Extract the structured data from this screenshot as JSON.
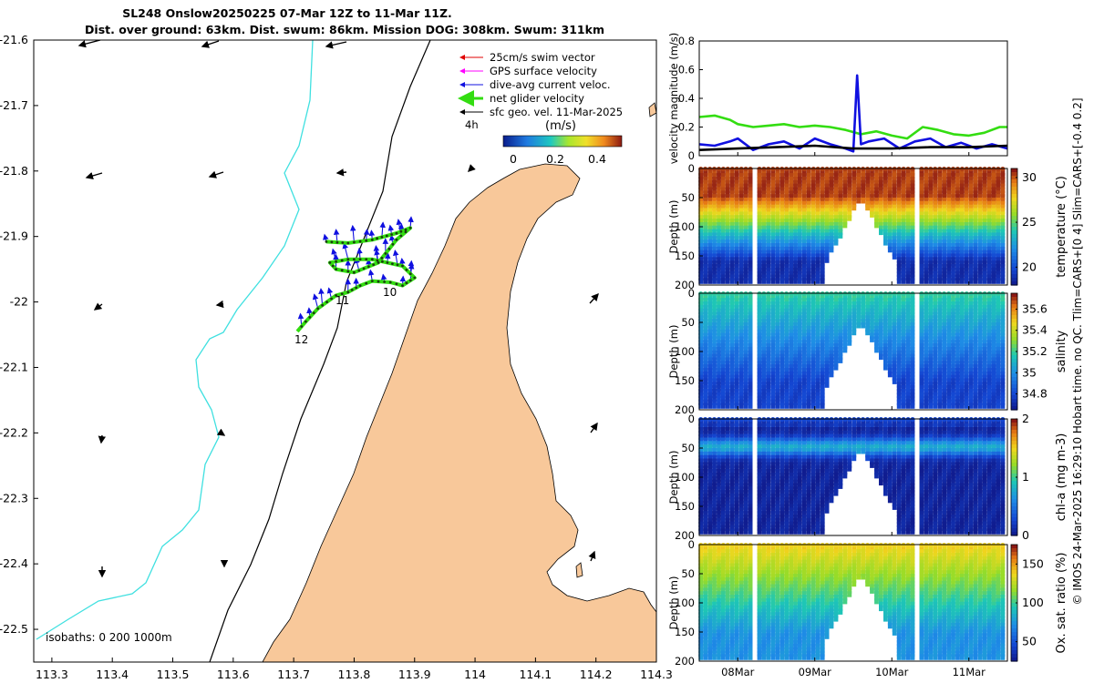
{
  "colors": {
    "land": "#f8c89a",
    "cyan": "#3fe0e0",
    "swim": "#e00000",
    "gps": "#ff00ff",
    "dive": "#1010e0",
    "net": "#33dd11",
    "geo": "#000000"
  },
  "title": {
    "line1": "SL248 Onslow20250225 07-Mar 12Z to 11-Mar 11Z.",
    "line2": "Dist. over ground: 63km. Dist. swum: 86km. Mission DOG: 308km. Swum: 311km"
  },
  "legend": {
    "items": [
      "25cm/s swim vector",
      "GPS surface velocity",
      "dive-avg current veloc.",
      "net glider velocity",
      "sfc geo. vel. 11-Mar-2025"
    ],
    "note": "4h",
    "colorbar_label": "(m/s)",
    "colorbar_ticks": [
      "0",
      "0.2",
      "0.4"
    ]
  },
  "map": {
    "xlim": [
      113.27,
      114.3
    ],
    "ylim": [
      -22.55,
      -21.6
    ],
    "xticks": [
      "113.3",
      "113.4",
      "113.5",
      "113.6",
      "113.7",
      "113.8",
      "113.9",
      "114",
      "114.1",
      "114.2",
      "114.3"
    ],
    "yticks": [
      "-21.6",
      "-21.7",
      "-21.8",
      "-21.9",
      "-22",
      "-22.1",
      "-22.2",
      "-22.3",
      "-22.4",
      "-22.5"
    ],
    "day_labels": [
      "10",
      "11",
      "12"
    ],
    "isobaths_text": "isobaths: 0   200  1000m",
    "track": [
      [
        113.754,
        -21.908
      ],
      [
        113.79,
        -21.91
      ],
      [
        113.83,
        -21.905
      ],
      [
        113.87,
        -21.895
      ],
      [
        113.893,
        -21.887
      ],
      [
        113.87,
        -21.905
      ],
      [
        113.84,
        -21.94
      ],
      [
        113.8,
        -21.955
      ],
      [
        113.77,
        -21.95
      ],
      [
        113.76,
        -21.94
      ],
      [
        113.79,
        -21.935
      ],
      [
        113.83,
        -21.935
      ],
      [
        113.88,
        -21.945
      ],
      [
        113.9,
        -21.963
      ],
      [
        113.88,
        -21.975
      ],
      [
        113.86,
        -21.97
      ],
      [
        113.83,
        -21.968
      ],
      [
        113.81,
        -21.975
      ],
      [
        113.79,
        -21.985
      ],
      [
        113.77,
        -21.99
      ],
      [
        113.74,
        -22.01
      ],
      [
        113.72,
        -22.03
      ],
      [
        113.706,
        -22.045
      ]
    ]
  },
  "chart_data": [
    {
      "type": "line",
      "ylabel": "velocity magnitude (m/s)",
      "ylim": [
        0,
        0.8
      ],
      "yticks": [
        "0",
        "0.2",
        "0.4",
        "0.6",
        "0.8"
      ],
      "xlim": [
        7.5,
        11.5
      ],
      "series": [
        {
          "name": "net glider velocity",
          "color": "#33dd11",
          "x": [
            7.5,
            7.7,
            7.9,
            8.0,
            8.2,
            8.4,
            8.6,
            8.8,
            9.0,
            9.2,
            9.4,
            9.6,
            9.8,
            10.0,
            10.2,
            10.4,
            10.6,
            10.8,
            11.0,
            11.2,
            11.4,
            11.5
          ],
          "y": [
            0.27,
            0.28,
            0.25,
            0.22,
            0.2,
            0.21,
            0.22,
            0.2,
            0.21,
            0.2,
            0.18,
            0.15,
            0.17,
            0.14,
            0.12,
            0.2,
            0.18,
            0.15,
            0.14,
            0.16,
            0.2,
            0.2
          ]
        },
        {
          "name": "dive-avg current veloc.",
          "color": "#1010e0",
          "x": [
            7.5,
            7.7,
            7.9,
            8.0,
            8.2,
            8.4,
            8.6,
            8.8,
            9.0,
            9.2,
            9.4,
            9.5,
            9.55,
            9.6,
            9.7,
            9.9,
            10.1,
            10.3,
            10.5,
            10.7,
            10.9,
            11.1,
            11.3,
            11.5
          ],
          "y": [
            0.08,
            0.07,
            0.1,
            0.12,
            0.04,
            0.08,
            0.1,
            0.05,
            0.12,
            0.08,
            0.05,
            0.03,
            0.56,
            0.08,
            0.1,
            0.12,
            0.05,
            0.1,
            0.12,
            0.06,
            0.09,
            0.05,
            0.08,
            0.05
          ]
        },
        {
          "name": "sfc geo. vel.",
          "color": "#000000",
          "x": [
            7.5,
            8.0,
            8.5,
            9.0,
            9.5,
            10.0,
            10.5,
            11.0,
            11.5
          ],
          "y": [
            0.04,
            0.05,
            0.06,
            0.07,
            0.05,
            0.05,
            0.06,
            0.06,
            0.07
          ]
        }
      ]
    },
    {
      "type": "heatmap",
      "variable": "temperature",
      "cbar_label": "temperature (°C)",
      "clim": [
        18,
        31
      ],
      "cbar_ticks": [
        20,
        25,
        30
      ],
      "ylabel": "Depth (m)",
      "ylim": [
        200,
        0
      ],
      "yticks": [
        "0",
        "50",
        "100",
        "150",
        "200"
      ],
      "surface_value": 30.5,
      "deep_value": 19
    },
    {
      "type": "heatmap",
      "variable": "salinity",
      "cbar_label": "salinity",
      "clim": [
        34.65,
        35.75
      ],
      "cbar_ticks": [
        34.8,
        35,
        35.2,
        35.4,
        35.6
      ],
      "ylabel": "Depth (m)",
      "ylim": [
        200,
        0
      ],
      "yticks": [
        "0",
        "50",
        "100",
        "150",
        "200"
      ],
      "surface_value": 35.2,
      "deep_value": 34.8
    },
    {
      "type": "heatmap",
      "variable": "chl-a",
      "cbar_label": "chl-a (mg m-3)",
      "clim": [
        0,
        2
      ],
      "cbar_ticks": [
        0,
        1,
        2
      ],
      "ylabel": "Depth (m)",
      "ylim": [
        200,
        0
      ],
      "yticks": [
        "0",
        "50",
        "100",
        "150",
        "200"
      ],
      "surface_value": 0.3,
      "deep_value": 0.1,
      "max_depth_value": 0.8,
      "max_depth_m": 45
    },
    {
      "type": "heatmap",
      "variable": "oxygen",
      "cbar_label": "Ox. sat. ratio (%)",
      "clim": [
        25,
        175
      ],
      "cbar_ticks": [
        50,
        100,
        150
      ],
      "ylabel": "Depth (m)",
      "ylim": [
        200,
        0
      ],
      "yticks": [
        "0",
        "50",
        "100",
        "150",
        "200"
      ],
      "surface_value": 140,
      "deep_value": 75
    }
  ],
  "time_axis": {
    "xlim": [
      7.5,
      11.5
    ],
    "ticks": [
      {
        "label": "08Mar",
        "day": 8
      },
      {
        "label": "09Mar",
        "day": 9
      },
      {
        "label": "10Mar",
        "day": 10
      },
      {
        "label": "11Mar",
        "day": 11
      }
    ]
  },
  "side_note": "© IMOS 24-Mar-2025 16:29:10 Hobart time. no QC. Tlim=CARS+[0 4] Slim=CARS+[-0.4 0.2]"
}
